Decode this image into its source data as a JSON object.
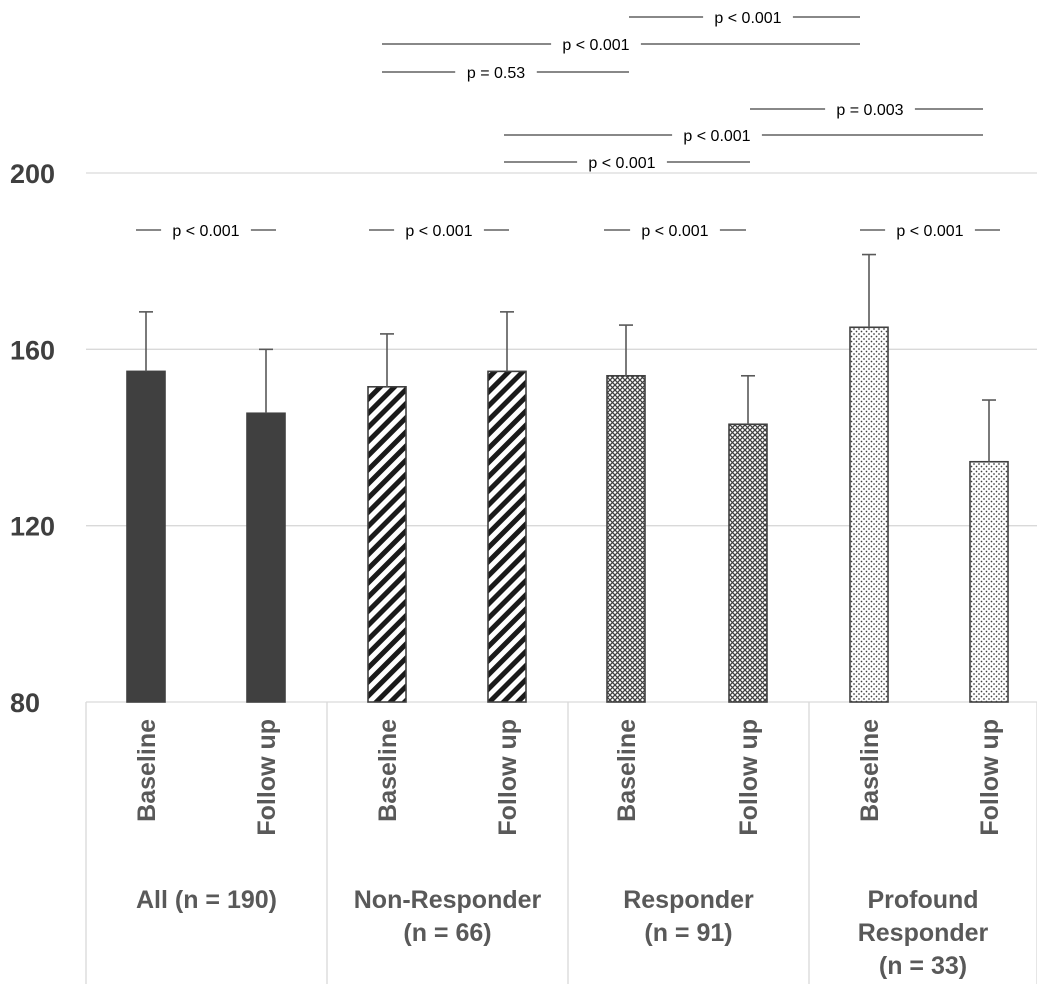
{
  "chart_data": {
    "type": "bar",
    "ylim": [
      80,
      200
    ],
    "yticks": [
      80,
      120,
      160,
      200
    ],
    "grid": true,
    "groups": [
      {
        "label": "All (n = 190)",
        "pattern": "solid",
        "bars": [
          {
            "label": "Baseline",
            "value": 155,
            "error": 13.5
          },
          {
            "label": "Follow up",
            "value": 145.5,
            "error": 14.5
          }
        ]
      },
      {
        "label": "Non-Responder (n = 66)",
        "pattern": "diagonal-stripes",
        "bars": [
          {
            "label": "Baseline",
            "value": 151.5,
            "error": 12
          },
          {
            "label": "Follow up",
            "value": 155,
            "error": 13.5
          }
        ]
      },
      {
        "label": "Responder (n = 91)",
        "pattern": "crosshatch",
        "bars": [
          {
            "label": "Baseline",
            "value": 154,
            "error": 11.5
          },
          {
            "label": "Follow up",
            "value": 143,
            "error": 11
          }
        ]
      },
      {
        "label": "Profound Responder (n = 33)",
        "pattern": "dots",
        "bars": [
          {
            "label": "Baseline",
            "value": 165,
            "error": 16.5
          },
          {
            "label": "Follow up",
            "value": 134.5,
            "error": 14
          }
        ]
      }
    ],
    "within_group_tests": [
      "p < 0.001",
      "p < 0.001",
      "p < 0.001",
      "p < 0.001"
    ],
    "between_group_tests": [
      {
        "from": "Non-Responder Baseline",
        "to": "Responder Baseline",
        "text": "p = 0.53"
      },
      {
        "from": "Non-Responder Baseline",
        "to": "Profound Responder Baseline",
        "text": "p < 0.001"
      },
      {
        "from": "Responder Baseline",
        "to": "Profound Responder Baseline",
        "text": "p < 0.001"
      },
      {
        "from": "Non-Responder Follow up",
        "to": "Responder Follow up",
        "text": "p < 0.001"
      },
      {
        "from": "Non-Responder Follow up",
        "to": "Profound Responder Follow up",
        "text": "p < 0.001"
      },
      {
        "from": "Responder Follow up",
        "to": "Profound Responder Follow up",
        "text": "p = 0.003"
      }
    ],
    "colors": {
      "bar_dark": "#404040",
      "outline": "#404040",
      "error_bar": "#595959",
      "grid": "#d9d9d9",
      "axis": "#d9d9d9"
    }
  }
}
